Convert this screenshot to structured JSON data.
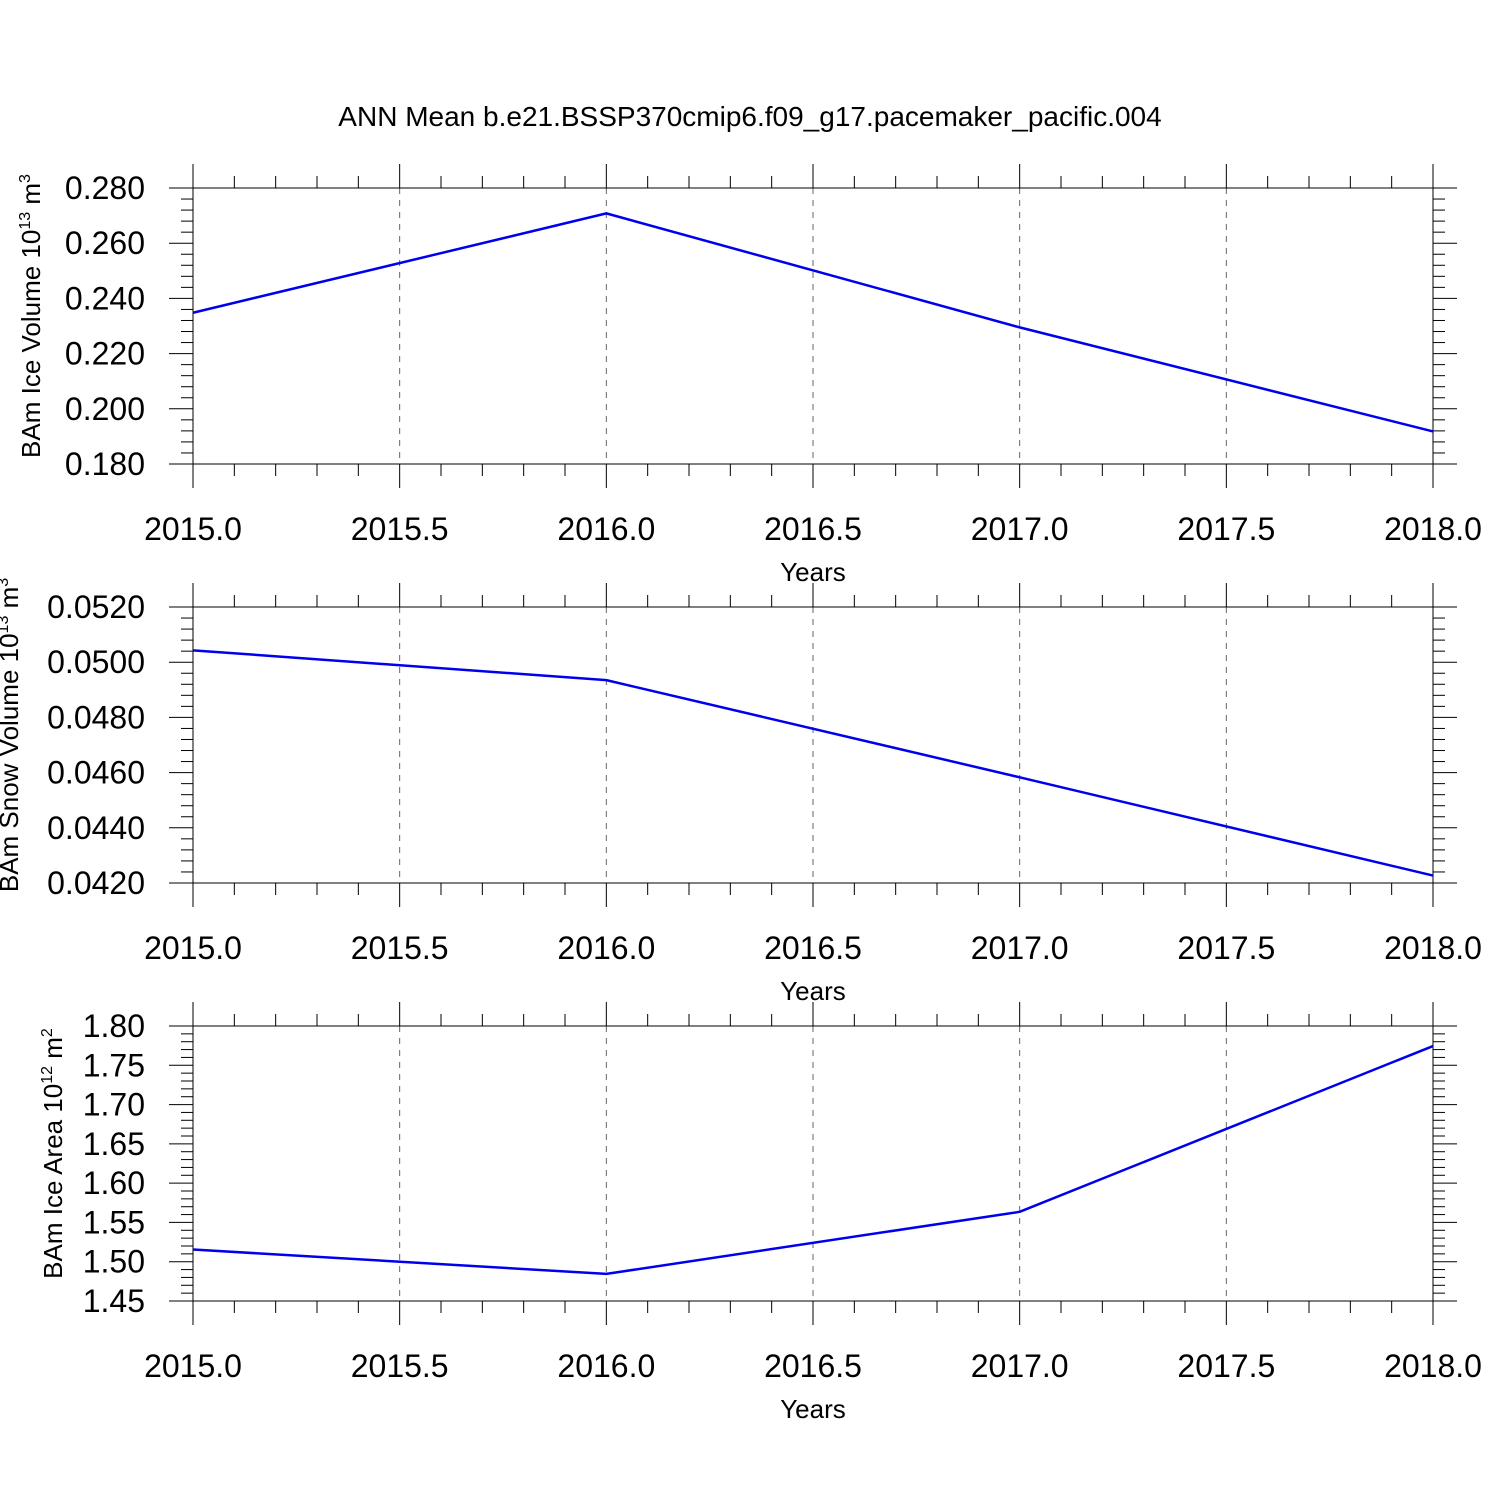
{
  "title": "ANN Mean b.e21.BSSP370cmip6.f09_g17.pacemaker_pacific.004",
  "line_color": "#0000ee",
  "chart_data": [
    {
      "type": "line",
      "title": "ANN Mean b.e21.BSSP370cmip6.f09_g17.pacemaker_pacific.004",
      "xlabel": "Years",
      "ylabel": "BAm Ice Volume 10",
      "ylabel_exp": "13",
      "ylabel_unit": "m",
      "ylabel_unit_exp": "3",
      "xlim": [
        2015.0,
        2018.0
      ],
      "ylim": [
        0.18,
        0.28
      ],
      "xticks": [
        2015.0,
        2015.5,
        2016.0,
        2016.5,
        2017.0,
        2017.5,
        2018.0
      ],
      "xtick_labels": [
        "2015.0",
        "2015.5",
        "2016.0",
        "2016.5",
        "2017.0",
        "2017.5",
        "2018.0"
      ],
      "yticks": [
        0.18,
        0.2,
        0.22,
        0.24,
        0.26,
        0.28
      ],
      "ytick_labels": [
        "0.180",
        "0.200",
        "0.220",
        "0.240",
        "0.260",
        "0.280"
      ],
      "x": [
        2015,
        2016,
        2017,
        2018
      ],
      "y": [
        0.2348,
        0.2708,
        0.2295,
        0.1918
      ]
    },
    {
      "type": "line",
      "xlabel": "Years",
      "ylabel": "BAm Snow Volume 10",
      "ylabel_exp": "13",
      "ylabel_unit": "m",
      "ylabel_unit_exp": "3",
      "xlim": [
        2015.0,
        2018.0
      ],
      "ylim": [
        0.042,
        0.052
      ],
      "xticks": [
        2015.0,
        2015.5,
        2016.0,
        2016.5,
        2017.0,
        2017.5,
        2018.0
      ],
      "xtick_labels": [
        "2015.0",
        "2015.5",
        "2016.0",
        "2016.5",
        "2017.0",
        "2017.5",
        "2018.0"
      ],
      "yticks": [
        0.042,
        0.044,
        0.046,
        0.048,
        0.05,
        0.052
      ],
      "ytick_labels": [
        "0.0420",
        "0.0440",
        "0.0460",
        "0.0480",
        "0.0500",
        "0.0520"
      ],
      "x": [
        2015,
        2016,
        2017,
        2018
      ],
      "y": [
        0.05043,
        0.04935,
        0.04583,
        0.04227
      ]
    },
    {
      "type": "line",
      "xlabel": "Years",
      "ylabel": "BAm Ice Area 10",
      "ylabel_exp": "12",
      "ylabel_unit": "m",
      "ylabel_unit_exp": "2",
      "xlim": [
        2015.0,
        2018.0
      ],
      "ylim": [
        1.45,
        1.8
      ],
      "xticks": [
        2015.0,
        2015.5,
        2016.0,
        2016.5,
        2017.0,
        2017.5,
        2018.0
      ],
      "xtick_labels": [
        "2015.0",
        "2015.5",
        "2016.0",
        "2016.5",
        "2017.0",
        "2017.5",
        "2018.0"
      ],
      "yticks": [
        1.45,
        1.5,
        1.55,
        1.6,
        1.65,
        1.7,
        1.75,
        1.8
      ],
      "ytick_labels": [
        "1.45",
        "1.50",
        "1.55",
        "1.60",
        "1.65",
        "1.70",
        "1.75",
        "1.80"
      ],
      "x": [
        2015,
        2016,
        2017,
        2018
      ],
      "y": [
        1.5155,
        1.4845,
        1.5635,
        1.7745
      ]
    }
  ]
}
